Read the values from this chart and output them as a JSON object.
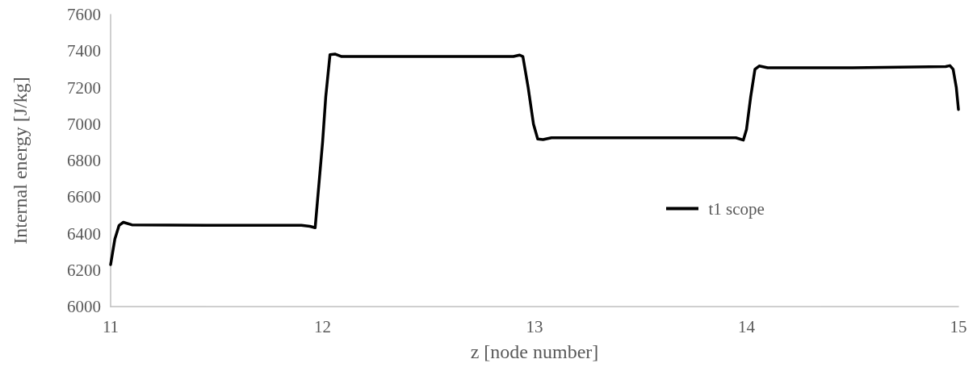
{
  "chart_data": {
    "type": "line",
    "xlabel": "z [node number]",
    "ylabel": "Internal energy [J/kg]",
    "series": [
      {
        "name": "t1 scope",
        "color": "#000000",
        "x": [
          11,
          11.02,
          11.04,
          11.06,
          11.1,
          11.5,
          11.9,
          11.94,
          11.965,
          11.985,
          12.0,
          12.015,
          12.035,
          12.06,
          12.09,
          12.5,
          12.9,
          12.93,
          12.945,
          12.97,
          12.995,
          13.015,
          13.04,
          13.08,
          13.5,
          13.95,
          13.985,
          14.0,
          14.02,
          14.04,
          14.06,
          14.1,
          14.5,
          14.94,
          14.96,
          14.975,
          14.99,
          15
        ],
        "values": [
          6230,
          6370,
          6445,
          6462,
          6448,
          6445,
          6445,
          6440,
          6432,
          6700,
          6900,
          7150,
          7380,
          7383,
          7370,
          7370,
          7370,
          7378,
          7370,
          7200,
          7000,
          6918,
          6915,
          6925,
          6925,
          6925,
          6912,
          6970,
          7150,
          7300,
          7318,
          7308,
          7308,
          7315,
          7320,
          7300,
          7200,
          7080
        ]
      }
    ],
    "xlim": [
      11,
      15
    ],
    "xticks": [
      11,
      12,
      13,
      14,
      15
    ],
    "ylim": [
      6000,
      7600
    ],
    "yticks": [
      6000,
      6200,
      6400,
      6600,
      6800,
      7000,
      7200,
      7400,
      7600
    ],
    "grid": false,
    "legend": "right",
    "marker": "none",
    "line_style": "solid"
  }
}
